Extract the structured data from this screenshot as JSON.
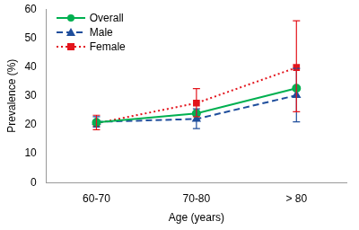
{
  "chart_data": {
    "type": "line",
    "x_label": "Age (years)",
    "y_label": "Prevalence (%)",
    "categories": [
      "60-70",
      "70-80",
      "> 80"
    ],
    "series": [
      {
        "name": "Overall",
        "color": "#00b050",
        "marker": "circle",
        "line_style": "solid",
        "values": [
          20.8,
          23.9,
          32.6
        ]
      },
      {
        "name": "Male",
        "color": "#1f4e9c",
        "marker": "triangle",
        "line_style": "dashed",
        "values": [
          21.0,
          22.0,
          30.2
        ],
        "error_low": [
          19.2,
          18.7,
          21.0
        ],
        "error_high": [
          22.8,
          25.5,
          39.5
        ]
      },
      {
        "name": "Female",
        "color": "#e3141c",
        "marker": "square",
        "line_style": "dotted",
        "values": [
          20.5,
          27.5,
          39.8
        ],
        "error_low": [
          18.3,
          22.8,
          24.5
        ],
        "error_high": [
          23.3,
          32.5,
          56.0
        ]
      }
    ],
    "ylim": [
      0,
      60
    ],
    "yticks": [
      0,
      10,
      20,
      30,
      40,
      50,
      60
    ],
    "grid": false,
    "legend": "upper left"
  }
}
